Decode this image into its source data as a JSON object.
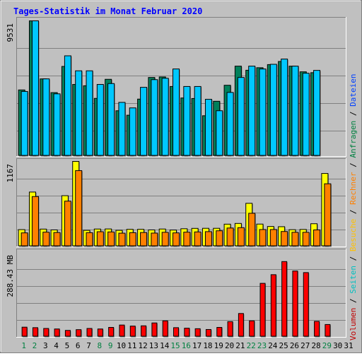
{
  "chart_data": [
    {
      "type": "bar",
      "title": "Tages-Statistik im Monat Februar 2020",
      "ylim": [
        0,
        9531
      ],
      "y_tick_label": "9531",
      "legend": [
        {
          "name": "Anfragen",
          "color": "#008040"
        },
        {
          "name": "Dateien",
          "color": "#0040ff"
        }
      ],
      "series": [
        {
          "name": "Anfragen",
          "color": "#00805a",
          "values": [
            4650,
            9531,
            5431,
            4461,
            6311,
            5038,
            4945,
            4054,
            5401,
            3181,
            2865,
            4003,
            5531,
            5567,
            4894,
            4082,
            4045,
            2828,
            3850,
            4981,
            6331,
            6041,
            6221,
            6441,
            6661,
            6331,
            5931,
            5871
          ]
        },
        {
          "name": "Dateien",
          "color": "#00c8ff",
          "values": [
            4543,
            9531,
            5431,
            4375,
            7061,
            6001,
            6001,
            5038,
            5101,
            3771,
            3381,
            4835,
            5377,
            5475,
            6131,
            4894,
            4894,
            3988,
            3181,
            4474,
            5531,
            6331,
            6131,
            6461,
            6831,
            6331,
            5831,
            6031
          ]
        }
      ]
    },
    {
      "type": "bar",
      "ylim": [
        0,
        1167
      ],
      "y_tick_label": "1167",
      "legend": [
        {
          "name": "Seiten",
          "color": "#00c0c0"
        },
        {
          "name": "Besuche",
          "color": "#ffc000"
        },
        {
          "name": "Rechner",
          "color": "#ff8000"
        }
      ],
      "series": [
        {
          "name": "Besuche",
          "color": "#ffff00",
          "values": [
            228,
            745,
            235,
            224,
            695,
            1167,
            218,
            236,
            237,
            218,
            232,
            232,
            224,
            236,
            222,
            240,
            245,
            246,
            246,
            303,
            313,
            590,
            304,
            271,
            268,
            227,
            230,
            309,
            1001
          ]
        },
        {
          "name": "Rechner",
          "color": "#ff8000",
          "values": [
            183,
            683,
            193,
            188,
            620,
            1040,
            186,
            199,
            196,
            179,
            186,
            188,
            180,
            191,
            183,
            193,
            196,
            200,
            212,
            250,
            255,
            453,
            229,
            229,
            202,
            191,
            191,
            224,
            859
          ]
        }
      ]
    },
    {
      "type": "bar",
      "ylim": [
        0,
        288.43
      ],
      "y_tick_label": "288.43 MB",
      "legend": [
        {
          "name": "Volumen",
          "color": "#c00000"
        }
      ],
      "series": [
        {
          "name": "Volumen",
          "color": "#ff0000",
          "values": [
            32.3,
            30.6,
            27.9,
            26.1,
            21.2,
            23.8,
            27.9,
            26.1,
            31.5,
            39.6,
            36.0,
            36.9,
            46.8,
            54.0,
            30.6,
            28.8,
            27.0,
            24.3,
            31.5,
            51.3,
            79.2,
            54.0,
            182.7,
            212.4,
            257.4,
            225.0,
            219.6,
            52.2,
            41.4
          ]
        }
      ]
    }
  ],
  "x_labels": [
    "1",
    "2",
    "3",
    "4",
    "5",
    "6",
    "7",
    "8",
    "9",
    "10",
    "11",
    "12",
    "13",
    "14",
    "15",
    "16",
    "17",
    "18",
    "19",
    "20",
    "21",
    "22",
    "23",
    "24",
    "25",
    "26",
    "27",
    "28",
    "29",
    "30",
    "31"
  ],
  "weekend_days": [
    1,
    2,
    8,
    9,
    15,
    16,
    22,
    23,
    29
  ],
  "colors": {
    "background": "#c0c0c0",
    "title": "#0000ff",
    "grid": "#808080",
    "bar_outline": "#000000",
    "weekday_label": "#000000",
    "weekend_label": "#008040"
  }
}
